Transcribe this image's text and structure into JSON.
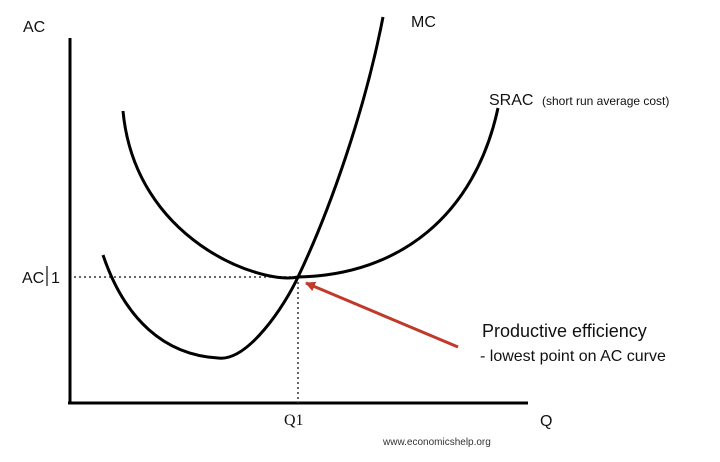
{
  "diagram": {
    "y_axis_label": "AC",
    "x_axis_label": "Q",
    "curves": {
      "mc_label": "MC",
      "srac_label": "SRAC",
      "srac_note": "(short run average cost)"
    },
    "ac1_label": "AC",
    "ac1_suffix": "1",
    "q1_label": "Q1",
    "annotation": {
      "line1": "Productive efficiency",
      "line2": "- lowest point on AC curve"
    },
    "watermark": "www.economicshelp.org",
    "colors": {
      "curve": "#000000",
      "arrow": "#c0392b",
      "guide": "#333333"
    }
  }
}
